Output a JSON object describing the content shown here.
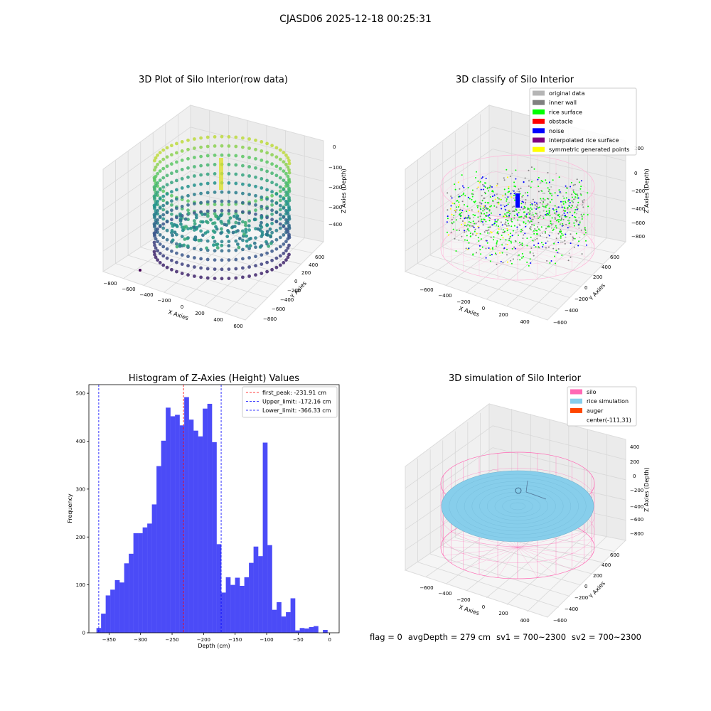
{
  "figure": {
    "suptitle": "CJASD06 2025-12-18 00:25:31"
  },
  "colors": {
    "hist_bar": "#4b4bf7",
    "first_peak": "#ff0000",
    "limits": "#0000ff",
    "original": "#b5b5b5",
    "inner_wall": "#808080",
    "rice_surface": "#00ff00",
    "obstacle": "#ff0000",
    "noise": "#0000ff",
    "interp": "#800080",
    "symmetric": "#ffff00",
    "silo": "#ff69b4",
    "rice_sim": "#87ceeb",
    "auger": "#ff4500"
  },
  "panels": {
    "raw": {
      "title": "3D Plot of Silo Interior(row data)",
      "xlabel": "X Axies",
      "ylabel": "Y Axies",
      "zlabel": "Z Axies (Depth)",
      "xticks": [
        "−800",
        "−600",
        "−400",
        "−200",
        "0",
        "200",
        "400",
        "600"
      ],
      "yticks": [
        "−800",
        "−600",
        "−400",
        "−200",
        "0",
        "200",
        "400",
        "600"
      ],
      "zticks": [
        "0",
        "−100",
        "−200",
        "−300",
        "−400"
      ]
    },
    "classify": {
      "title": "3D classify of Silo Interior",
      "xlabel": "X Axies",
      "ylabel": "Y Axies",
      "zlabel": "Z Axies (Depth)",
      "xticks": [
        "−600",
        "−400",
        "−200",
        "0",
        "200",
        "400"
      ],
      "yticks": [
        "−600",
        "−400",
        "−200",
        "0",
        "200",
        "400",
        "600"
      ],
      "zticks": [
        "200",
        "0",
        "−200",
        "−400",
        "−600",
        "−800"
      ],
      "legend": [
        {
          "label": "original data",
          "color": "#b5b5b5"
        },
        {
          "label": "inner wall",
          "color": "#808080"
        },
        {
          "label": "rice surface",
          "color": "#00ff00"
        },
        {
          "label": "obstacle",
          "color": "#ff0000"
        },
        {
          "label": "noise",
          "color": "#0000ff"
        },
        {
          "label": "interpolated rice surface",
          "color": "#800080"
        },
        {
          "label": "symmetric generated points",
          "color": "#ffff00"
        }
      ]
    },
    "simulation": {
      "title": "3D simulation of Silo Interior",
      "xlabel": "X Axies",
      "ylabel": "Y Axies",
      "zlabel": "Z Axies (Depth)",
      "xticks": [
        "−600",
        "−400",
        "−200",
        "0",
        "200",
        "400"
      ],
      "yticks": [
        "−600",
        "−400",
        "−200",
        "0",
        "200",
        "400",
        "600"
      ],
      "zticks": [
        "400",
        "200",
        "0",
        "−200",
        "−400",
        "−600",
        "−800"
      ],
      "legend": [
        {
          "label": "silo",
          "color": "#ff69b4"
        },
        {
          "label": "rice simulation",
          "color": "#87ceeb"
        },
        {
          "label": "auger",
          "color": "#ff4500"
        },
        {
          "label": "center(-111,31)",
          "color": ""
        }
      ]
    }
  },
  "footer": {
    "flag": "flag = 0",
    "avg": "avgDepth = 279 cm",
    "sv1": "sv1 = 700~2300",
    "sv2": "sv2 = 700~2300"
  },
  "chart_data": [
    {
      "type": "bar",
      "title": "Histogram of Z-Axies (Height) Values",
      "xlabel": "Depth (cm)",
      "ylabel": "Frequency",
      "xlim": [
        -382,
        15
      ],
      "ylim": [
        0,
        518
      ],
      "xticks": [
        -350,
        -300,
        -250,
        -200,
        -150,
        -100,
        -50,
        0
      ],
      "xtick_labels": [
        "−350",
        "−300",
        "−250",
        "−200",
        "−150",
        "−100",
        "−50",
        "0"
      ],
      "yticks": [
        0,
        100,
        200,
        300,
        400,
        500
      ],
      "bin_width": 7.33,
      "bins_start": -370,
      "values": [
        10,
        40,
        78,
        90,
        110,
        105,
        145,
        165,
        208,
        208,
        220,
        228,
        268,
        348,
        401,
        470,
        452,
        455,
        433,
        492,
        445,
        422,
        410,
        468,
        478,
        398,
        185,
        84,
        116,
        100,
        115,
        98,
        116,
        146,
        180,
        160,
        397,
        183,
        48,
        64,
        34,
        43,
        72,
        5,
        10,
        9,
        12,
        14,
        0,
        6
      ],
      "lines": [
        {
          "name": "first_peak: -231.91 cm",
          "x": -231.91,
          "color": "#ff0000"
        },
        {
          "name": "Upper_limit: -172.16 cm",
          "x": -172.16,
          "color": "#0000ff"
        },
        {
          "name": "Lower_limit: -366.33 cm",
          "x": -366.33,
          "color": "#0000ff"
        }
      ],
      "legend": "upper right"
    }
  ]
}
